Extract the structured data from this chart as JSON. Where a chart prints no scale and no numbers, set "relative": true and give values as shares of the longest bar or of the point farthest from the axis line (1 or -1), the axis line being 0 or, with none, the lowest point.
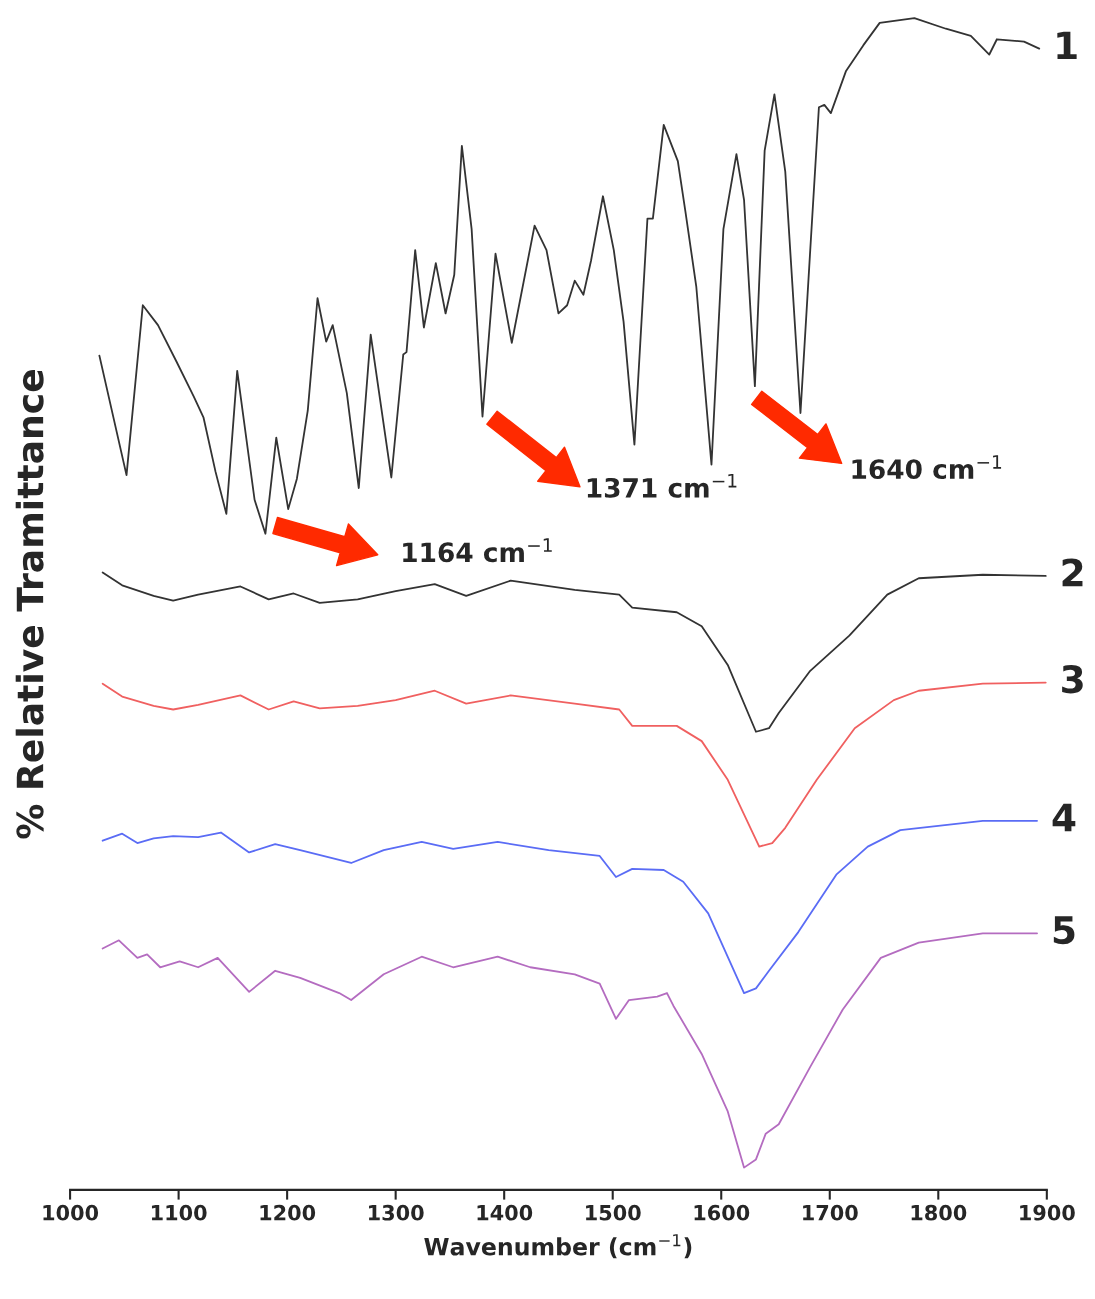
{
  "chart_data": {
    "type": "line",
    "relative": true,
    "xlabel": "Wavenumber (cm$^{−1}$)",
    "ylabel": "% Relative Tramittance",
    "xlim": [
      1000,
      1900
    ],
    "xticks": [
      1000,
      1100,
      1200,
      1300,
      1400,
      1500,
      1600,
      1700,
      1800,
      1900
    ],
    "tick_labels": "x",
    "grid": false,
    "legend": false,
    "annotations": [
      "1164 cm$^{−1}$",
      "1371 cm$^{−1}$",
      "1640 cm$^{−1}$"
    ],
    "series": [
      {
        "name": "1",
        "color": "#333333",
        "x": [
          1027,
          1052,
          1067,
          1081,
          1098,
          1114,
          1123,
          1134,
          1144,
          1154,
          1170,
          1180,
          1190,
          1201,
          1209,
          1219,
          1228,
          1236,
          1242,
          1255,
          1266,
          1277,
          1296,
          1307,
          1310,
          1318,
          1326,
          1337,
          1346,
          1354,
          1361,
          1370,
          1380,
          1392,
          1407,
          1428,
          1439,
          1450,
          1458,
          1465,
          1473,
          1480,
          1491,
          1501,
          1510,
          1520,
          1532,
          1537,
          1547,
          1560,
          1567,
          1577,
          1591,
          1602,
          1614,
          1621,
          1631,
          1640,
          1649,
          1659,
          1673,
          1682,
          1690,
          1695,
          1701,
          1715,
          1731,
          1746,
          1778,
          1807,
          1830,
          1847,
          1854,
          1879,
          1893
        ],
        "values": [
          0.712,
          0.61,
          0.755,
          0.738,
          0.707,
          0.677,
          0.659,
          0.613,
          0.577,
          0.699,
          0.589,
          0.56,
          0.642,
          0.581,
          0.607,
          0.665,
          0.761,
          0.724,
          0.738,
          0.68,
          0.599,
          0.73,
          0.608,
          0.713,
          0.715,
          0.802,
          0.736,
          0.791,
          0.748,
          0.781,
          0.891,
          0.82,
          0.66,
          0.799,
          0.723,
          0.823,
          0.802,
          0.748,
          0.755,
          0.776,
          0.764,
          0.793,
          0.848,
          0.802,
          0.741,
          0.636,
          0.829,
          0.829,
          0.909,
          0.878,
          0.835,
          0.771,
          0.619,
          0.82,
          0.884,
          0.845,
          0.686,
          0.887,
          0.935,
          0.869,
          0.663,
          0.802,
          0.924,
          0.926,
          0.919,
          0.955,
          0.977,
          0.996,
          1.0,
          0.991,
          0.985,
          0.969,
          0.982,
          0.98,
          0.974
        ]
      },
      {
        "name": "2",
        "color": "#333333",
        "x": [
          1030,
          1048,
          1077,
          1095,
          1118,
          1157,
          1183,
          1206,
          1230,
          1265,
          1300,
          1336,
          1365,
          1406,
          1465,
          1506,
          1518,
          1559,
          1582,
          1606,
          1632,
          1644,
          1653,
          1682,
          1718,
          1753,
          1782,
          1841,
          1899
        ],
        "values": [
          0.527,
          0.516,
          0.507,
          0.503,
          0.508,
          0.515,
          0.504,
          0.509,
          0.501,
          0.504,
          0.511,
          0.517,
          0.507,
          0.52,
          0.512,
          0.508,
          0.497,
          0.493,
          0.481,
          0.448,
          0.391,
          0.394,
          0.407,
          0.443,
          0.473,
          0.508,
          0.522,
          0.525,
          0.524
        ]
      },
      {
        "name": "3",
        "color": "#f06060",
        "x": [
          1030,
          1048,
          1077,
          1095,
          1118,
          1157,
          1183,
          1206,
          1230,
          1265,
          1300,
          1336,
          1365,
          1406,
          1465,
          1506,
          1518,
          1559,
          1582,
          1606,
          1635,
          1647,
          1659,
          1688,
          1723,
          1759,
          1782,
          1841,
          1899
        ],
        "values": [
          0.432,
          0.421,
          0.413,
          0.41,
          0.414,
          0.422,
          0.41,
          0.417,
          0.411,
          0.413,
          0.418,
          0.426,
          0.415,
          0.422,
          0.415,
          0.41,
          0.396,
          0.396,
          0.383,
          0.35,
          0.293,
          0.296,
          0.309,
          0.35,
          0.394,
          0.418,
          0.426,
          0.432,
          0.433
        ]
      },
      {
        "name": "4",
        "color": "#5a6cf5",
        "x": [
          1030,
          1048,
          1062,
          1077,
          1095,
          1118,
          1139,
          1165,
          1189,
          1212,
          1259,
          1289,
          1324,
          1353,
          1394,
          1441,
          1488,
          1503,
          1518,
          1547,
          1565,
          1588,
          1621,
          1632,
          1644,
          1671,
          1706,
          1735,
          1765,
          1841,
          1891
        ],
        "values": [
          0.298,
          0.304,
          0.296,
          0.3,
          0.302,
          0.301,
          0.305,
          0.288,
          0.295,
          0.29,
          0.279,
          0.29,
          0.297,
          0.291,
          0.297,
          0.29,
          0.285,
          0.267,
          0.274,
          0.273,
          0.263,
          0.236,
          0.168,
          0.172,
          0.187,
          0.22,
          0.269,
          0.293,
          0.307,
          0.315,
          0.315
        ]
      },
      {
        "name": "5",
        "color": "#b46cc0",
        "x": [
          1030,
          1045,
          1062,
          1071,
          1083,
          1101,
          1118,
          1136,
          1165,
          1189,
          1212,
          1248,
          1259,
          1289,
          1324,
          1353,
          1394,
          1424,
          1465,
          1488,
          1503,
          1515,
          1541,
          1550,
          1556,
          1582,
          1606,
          1621,
          1632,
          1641,
          1653,
          1682,
          1712,
          1747,
          1782,
          1841,
          1891
        ],
        "values": [
          0.206,
          0.213,
          0.198,
          0.201,
          0.19,
          0.195,
          0.19,
          0.198,
          0.169,
          0.187,
          0.181,
          0.168,
          0.162,
          0.184,
          0.199,
          0.19,
          0.199,
          0.19,
          0.184,
          0.176,
          0.146,
          0.162,
          0.165,
          0.168,
          0.157,
          0.116,
          0.067,
          0.019,
          0.026,
          0.048,
          0.056,
          0.105,
          0.154,
          0.198,
          0.211,
          0.219,
          0.219
        ]
      }
    ]
  }
}
